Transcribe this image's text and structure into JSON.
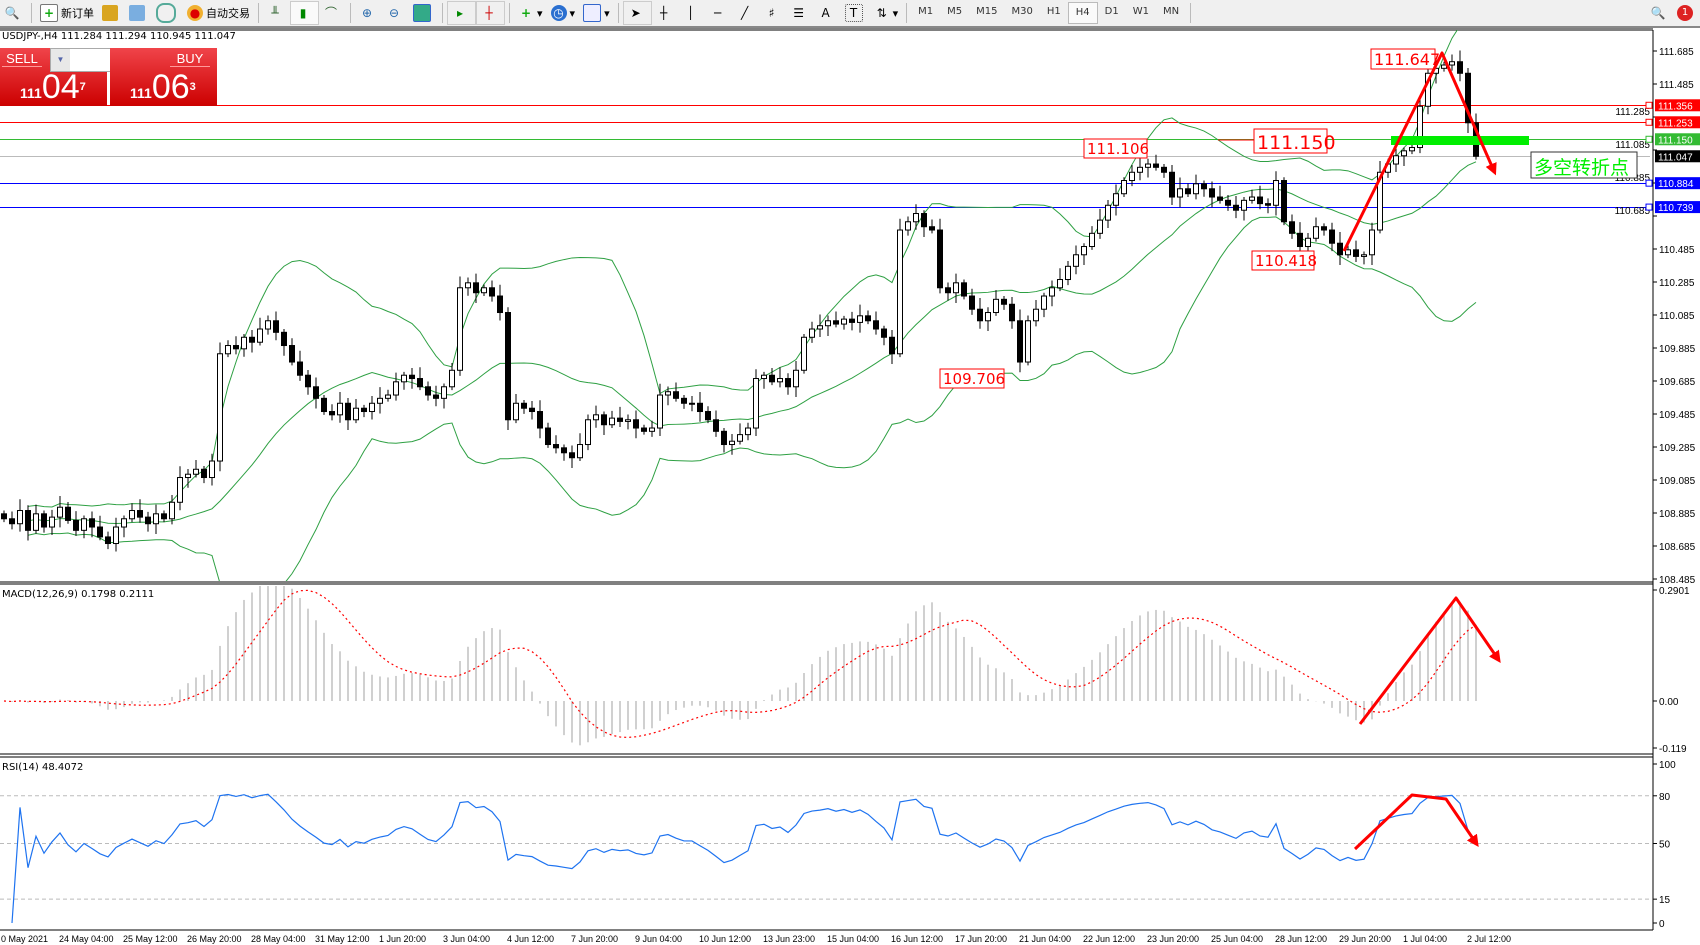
{
  "toolbar": {
    "new_order": "新订单",
    "auto_trading": "自动交易",
    "timeframes": [
      "M1",
      "M5",
      "M15",
      "M30",
      "H1",
      "H4",
      "D1",
      "W1",
      "MN"
    ],
    "active_timeframe": "H4",
    "notification_count": "1"
  },
  "header": {
    "symbol_info": "USDJPY-,H4  111.284 111.294 110.945 111.047"
  },
  "one_click": {
    "sell_label": "SELL",
    "buy_label": "BUY",
    "lot": "1.00",
    "sell_big": "111",
    "sell_main": "04",
    "sell_frac": "7",
    "buy_big": "111",
    "buy_main": "06",
    "buy_frac": "3"
  },
  "chart_data": {
    "type": "candlestick",
    "symbol": "USDJPY-",
    "timeframe": "H4",
    "ylim": [
      108.485,
      111.685
    ],
    "price_ticks": [
      "111.685",
      "111.485",
      "111.285",
      "111.085",
      "110.885",
      "110.685",
      "110.485",
      "110.285",
      "110.085",
      "109.885",
      "109.685",
      "109.485",
      "109.285",
      "109.085",
      "108.885",
      "108.685",
      "108.485"
    ],
    "time_labels": [
      "0 May 2021",
      "24 May 04:00",
      "25 May 12:00",
      "26 May 20:00",
      "28 May 04:00",
      "31 May 12:00",
      "1 Jun 20:00",
      "3 Jun 04:00",
      "4 Jun 12:00",
      "7 Jun 20:00",
      "9 Jun 04:00",
      "10 Jun 12:00",
      "13 Jun 23:00",
      "15 Jun 04:00",
      "16 Jun 12:00",
      "17 Jun 20:00",
      "21 Jun 04:00",
      "22 Jun 12:00",
      "23 Jun 20:00",
      "25 Jun 04:00",
      "28 Jun 12:00",
      "29 Jun 20:00",
      "1 Jul 04:00",
      "2 Jul 12:00"
    ],
    "close": [
      108.85,
      108.82,
      108.9,
      108.78,
      108.88,
      108.8,
      108.86,
      108.92,
      108.84,
      108.78,
      108.85,
      108.8,
      108.74,
      108.7,
      108.8,
      108.85,
      108.9,
      108.86,
      108.82,
      108.88,
      108.85,
      108.95,
      109.1,
      109.12,
      109.15,
      109.1,
      109.2,
      109.85,
      109.9,
      109.88,
      109.95,
      109.92,
      110.0,
      110.05,
      109.98,
      109.9,
      109.8,
      109.72,
      109.65,
      109.58,
      109.5,
      109.48,
      109.55,
      109.45,
      109.52,
      109.5,
      109.55,
      109.58,
      109.6,
      109.68,
      109.72,
      109.7,
      109.65,
      109.6,
      109.58,
      109.65,
      109.75,
      110.25,
      110.28,
      110.22,
      110.25,
      110.2,
      110.1,
      109.45,
      109.55,
      109.52,
      109.5,
      109.4,
      109.3,
      109.28,
      109.25,
      109.22,
      109.3,
      109.45,
      109.48,
      109.42,
      109.46,
      109.44,
      109.45,
      109.4,
      109.38,
      109.4,
      109.6,
      109.62,
      109.58,
      109.55,
      109.55,
      109.5,
      109.45,
      109.38,
      109.3,
      109.32,
      109.36,
      109.4,
      109.7,
      109.72,
      109.68,
      109.7,
      109.65,
      109.75,
      109.95,
      110.0,
      110.02,
      110.05,
      110.03,
      110.06,
      110.04,
      110.08,
      110.05,
      110.0,
      109.95,
      109.85,
      110.6,
      110.65,
      110.7,
      110.62,
      110.6,
      110.25,
      110.22,
      110.28,
      110.2,
      110.12,
      110.05,
      110.1,
      110.18,
      110.15,
      110.05,
      109.8,
      110.05,
      110.12,
      110.2,
      110.25,
      110.3,
      110.38,
      110.45,
      110.5,
      110.58,
      110.66,
      110.75,
      110.82,
      110.9,
      110.95,
      110.98,
      111.0,
      110.98,
      110.95,
      110.8,
      110.85,
      110.82,
      110.88,
      110.85,
      110.8,
      110.78,
      110.75,
      110.72,
      110.78,
      110.8,
      110.76,
      110.75,
      110.9,
      110.65,
      110.58,
      110.5,
      110.55,
      110.62,
      110.6,
      110.52,
      110.45,
      110.48,
      110.44,
      110.45,
      110.6,
      110.95,
      111.0,
      111.05,
      111.08,
      111.1,
      111.35,
      111.55,
      111.58,
      111.6,
      111.62,
      111.55,
      111.25,
      111.047
    ],
    "bollinger": "green",
    "horizontal_lines": [
      {
        "price": 111.356,
        "label": "111.356",
        "color": "#ff0000"
      },
      {
        "price": 111.253,
        "label": "111.253",
        "color": "#ff0000"
      },
      {
        "price": 111.15,
        "label": "111.150",
        "color": "#33bb33"
      },
      {
        "price": 111.047,
        "label": "111.047",
        "color": "#000000"
      },
      {
        "price": 110.884,
        "label": "110.884",
        "color": "#0000ff"
      },
      {
        "price": 110.739,
        "label": "110.739",
        "color": "#0000ff"
      }
    ],
    "annotations": {
      "high": "111.647",
      "level": "111.150",
      "peak_prev": "111.106",
      "low_recent": "110.418",
      "low_prev": "109.706",
      "turning_point": "多空转折点"
    },
    "macd": {
      "label": "MACD(12,26,9) 0.1798 0.2111",
      "ticks": [
        "0.2901",
        "0.00",
        "-0.119"
      ],
      "ylim": [
        -0.119,
        0.2901
      ]
    },
    "rsi": {
      "label": "RSI(14) 48.4072",
      "ticks": [
        "100",
        "80",
        "50",
        "15",
        "0"
      ],
      "levels": [
        80,
        50,
        15
      ]
    },
    "colors": {
      "bands": "#2ea043",
      "signal": "#ff0000",
      "rsi": "#1e73f0",
      "arrow": "#ff0000",
      "highlight": "#00ee00"
    }
  }
}
